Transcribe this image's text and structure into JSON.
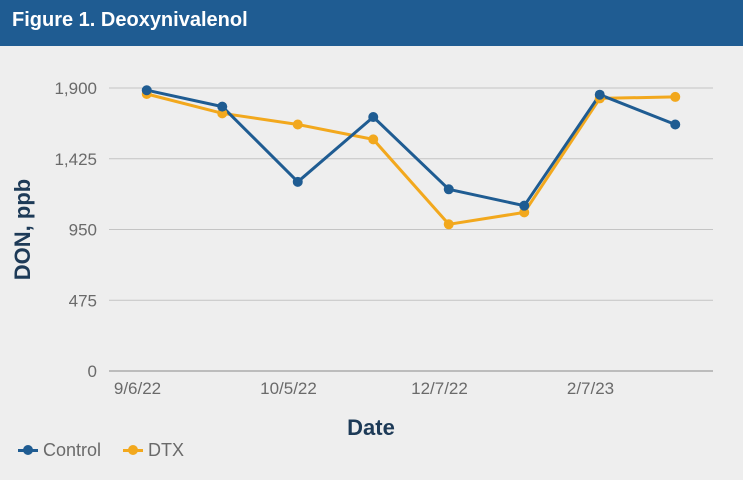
{
  "header": {
    "title": "Figure 1. Deoxynivalenol"
  },
  "chart_data": {
    "type": "line",
    "title": "Figure 1. Deoxynivalenol",
    "xlabel": "Date",
    "ylabel": "DON, ppb",
    "x": [
      "9/6/22",
      "",
      "10/5/22",
      "",
      "12/7/22",
      "",
      "2/7/23",
      ""
    ],
    "x_tick_labels": [
      "9/6/22",
      "10/5/22",
      "12/7/22",
      "2/7/23"
    ],
    "y_ticks": [
      "0",
      "475",
      "950",
      "1,425",
      "1,900"
    ],
    "ylim": [
      0,
      1900
    ],
    "grid": true,
    "legend_position": "bottom-left",
    "series": [
      {
        "name": "Control",
        "color": "#1f5c92",
        "values": [
          1885,
          1775,
          1270,
          1705,
          1220,
          1110,
          1855,
          1655
        ]
      },
      {
        "name": "DTX",
        "color": "#f2a81d",
        "values": [
          1860,
          1730,
          1655,
          1555,
          985,
          1065,
          1830,
          1840
        ]
      }
    ]
  },
  "legend": [
    {
      "label": "Control",
      "color": "#1f5c92"
    },
    {
      "label": "DTX",
      "color": "#f2a81d"
    }
  ]
}
